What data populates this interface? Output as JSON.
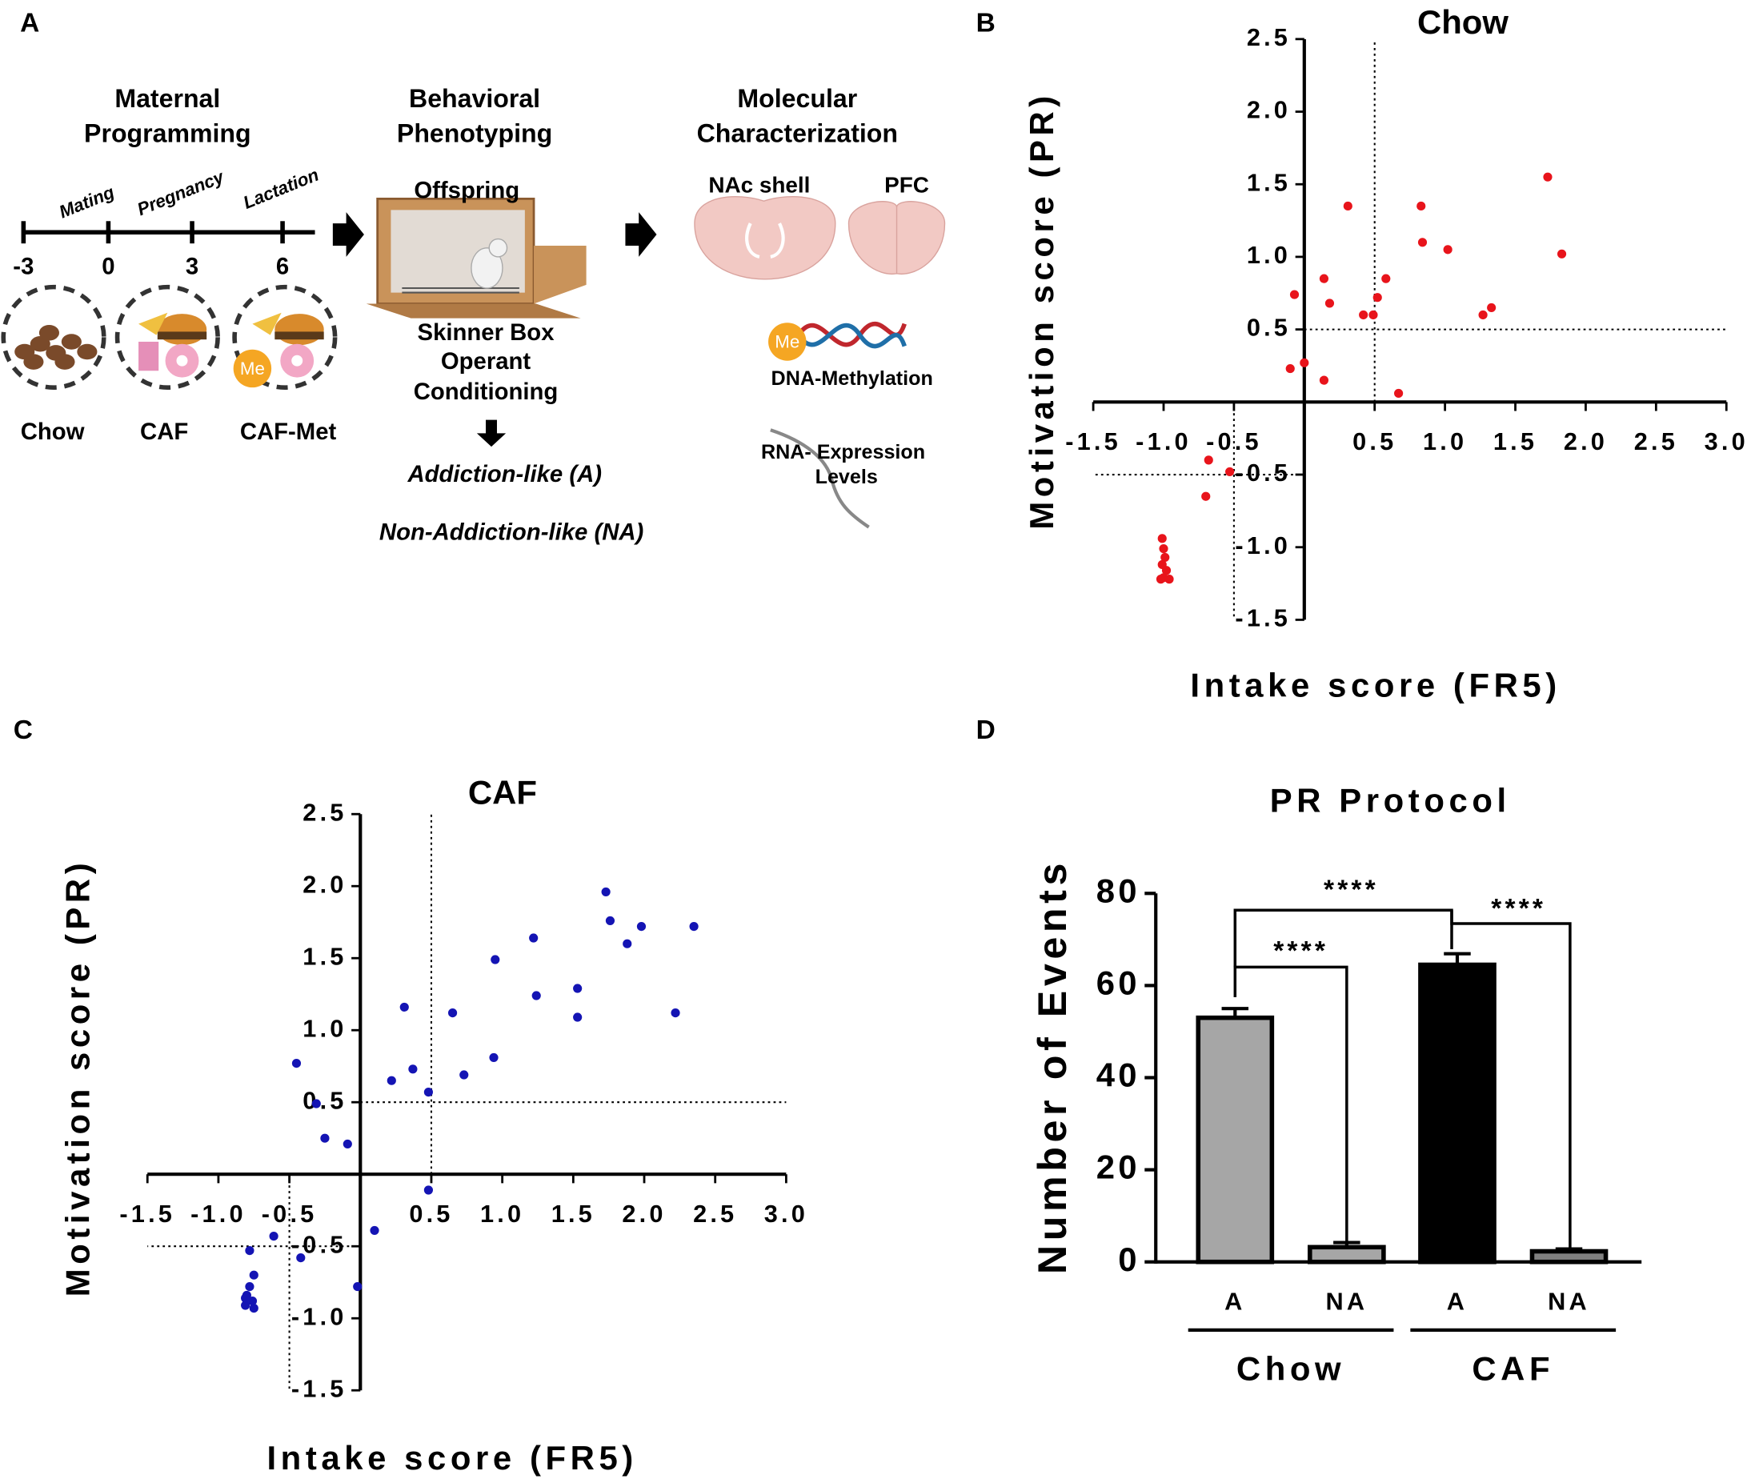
{
  "panels": [
    "A",
    "B",
    "C",
    "D"
  ],
  "diagram": {
    "maternal": [
      "Maternal",
      "Programming"
    ],
    "behavioral": [
      "Behavioral",
      "Phenotyping"
    ],
    "molecular": [
      "Molecular",
      "Characterization"
    ],
    "phases": [
      "Mating",
      "Pregnancy",
      "Lactation"
    ],
    "timeline": [
      "-3",
      "0",
      "3",
      "6"
    ],
    "diets": [
      "Chow",
      "CAF",
      "CAF-Met"
    ],
    "offspring": "Offspring",
    "skinner": [
      "Skinner Box",
      "Operant",
      "Conditioning"
    ],
    "groups": [
      "Addiction-like (A)",
      "Non-Addiction-like (NA)"
    ],
    "regions": [
      "NAc shell",
      "PFC"
    ],
    "me": "Me",
    "methylation": "DNA-Methylation",
    "rna": [
      "RNA- Expression",
      "Levels"
    ]
  },
  "chart_data": [
    {
      "type": "scatter",
      "title": "Chow",
      "x_label": "Intake score (FR5)",
      "y_label": "Motivation score (PR)",
      "color": "#e8141b",
      "xlim": [
        -1.5,
        3
      ],
      "ylim": [
        -1.5,
        2.5
      ],
      "xticks": [
        -1.5,
        {
          "value": -1,
          "label": "-1.0"
        },
        -0.5,
        0.5,
        {
          "value": 1,
          "label": "1.0"
        },
        1.5,
        {
          "value": 2,
          "label": "2.0"
        },
        2.5,
        {
          "value": 3,
          "label": "3.0"
        }
      ],
      "yticks": [
        2.5,
        {
          "value": 2,
          "label": "2.0"
        },
        1.5,
        {
          "value": 1,
          "label": "1.0"
        },
        0.5,
        -0.5,
        {
          "value": -1,
          "label": "-1.0"
        },
        -1.5
      ],
      "thresholds": [
        0.5,
        -0.5
      ],
      "x": [
        -0.07,
        0.14,
        0.18,
        0.31,
        0,
        -0.1,
        0.14,
        0.42,
        0.49,
        0.52,
        0.58,
        0.67,
        0.83,
        0.84,
        1.02,
        1.27,
        1.33,
        1.73,
        1.83,
        -0.68,
        -0.53,
        -0.7,
        -1.01,
        -1.0,
        -0.99,
        -1.01,
        -0.98,
        -1.0,
        -0.96,
        -1.02
      ],
      "y": [
        0.74,
        0.85,
        0.68,
        1.35,
        0.27,
        0.23,
        0.15,
        0.6,
        0.6,
        0.72,
        0.85,
        0.06,
        1.35,
        1.1,
        1.05,
        0.6,
        0.65,
        1.55,
        1.02,
        -0.4,
        -0.48,
        -0.65,
        -0.94,
        -1.01,
        -1.07,
        -1.12,
        -1.16,
        -1.21,
        -1.22,
        -1.22
      ]
    },
    {
      "type": "scatter",
      "title": "CAF",
      "x_label": "Intake score (FR5)",
      "y_label": "Motivation score (PR)",
      "color": "#1414b4",
      "xlim": [
        -1.5,
        3
      ],
      "ylim": [
        -1.5,
        2.5
      ],
      "xticks": [
        -1.5,
        {
          "value": -1,
          "label": "-1.0"
        },
        -0.5,
        0.5,
        {
          "value": 1,
          "label": "1.0"
        },
        1.5,
        {
          "value": 2,
          "label": "2.0"
        },
        2.5,
        {
          "value": 3,
          "label": "3.0"
        }
      ],
      "yticks": [
        2.5,
        {
          "value": 2,
          "label": "2.0"
        },
        1.5,
        {
          "value": 1,
          "label": "1.0"
        },
        0.5,
        -0.5,
        {
          "value": -1,
          "label": "-1.0"
        },
        -1.5
      ],
      "thresholds": [
        0.5,
        -0.5
      ],
      "x": [
        -0.45,
        -0.31,
        -0.25,
        -0.09,
        0.22,
        0.31,
        0.37,
        0.48,
        0.48,
        0.65,
        0.73,
        0.94,
        0.95,
        1.22,
        1.24,
        1.53,
        1.53,
        1.73,
        1.76,
        1.88,
        1.98,
        2.22,
        2.35,
        0.1,
        -0.02,
        -0.61,
        -0.42,
        -0.78,
        -0.75,
        -0.78,
        -0.8,
        -0.76,
        -0.81,
        -0.75,
        -0.81
      ],
      "y": [
        0.77,
        0.49,
        0.25,
        0.21,
        0.65,
        1.16,
        0.73,
        0.57,
        -0.11,
        1.12,
        0.69,
        0.81,
        1.49,
        1.64,
        1.24,
        1.29,
        1.09,
        1.96,
        1.76,
        1.6,
        1.72,
        1.12,
        1.72,
        -0.39,
        -0.78,
        -0.43,
        -0.58,
        -0.53,
        -0.7,
        -0.78,
        -0.84,
        -0.88,
        -0.91,
        -0.93,
        -0.86
      ]
    },
    {
      "type": "bar",
      "title": "PR Protocol",
      "y_label": "Number of Events",
      "categories": [
        "A",
        "NA",
        "A",
        "NA"
      ],
      "groups": [
        "Chow",
        "CAF"
      ],
      "values": [
        53,
        3.2,
        64.5,
        2.3
      ],
      "errors": [
        2,
        1,
        2.4,
        0.5
      ],
      "colors": [
        "#a6a6a6",
        "#a6a6a6",
        "#000000",
        "#808080"
      ],
      "ylim": [
        0,
        80
      ],
      "yticks": [
        0,
        20,
        40,
        60,
        80
      ],
      "annotations": [
        "****",
        "****",
        "****"
      ]
    }
  ]
}
